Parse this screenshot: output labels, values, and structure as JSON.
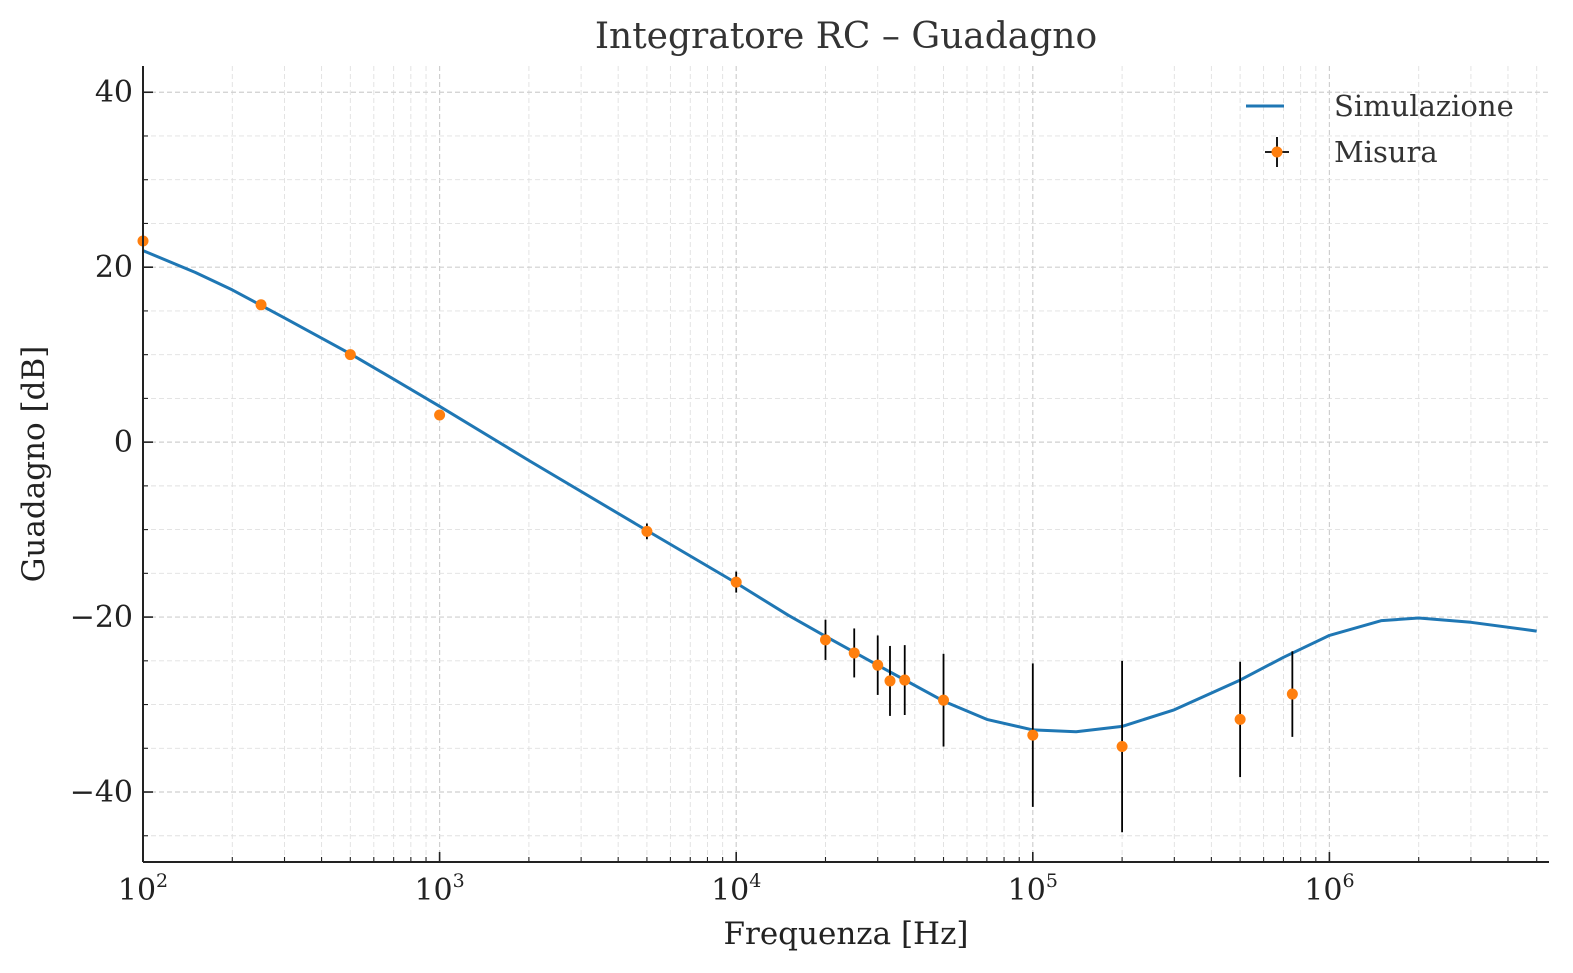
{
  "chart_data": {
    "type": "line",
    "title": "Integratore RC – Guadagno",
    "xlabel": "Frequenza [Hz]",
    "ylabel": "Guadagno [dB]",
    "xscale": "log",
    "xlim": [
      100,
      5500000
    ],
    "ylim": [
      -48,
      43
    ],
    "x_ticks": [
      {
        "value": 100,
        "base": "10",
        "exp": "2"
      },
      {
        "value": 1000,
        "base": "10",
        "exp": "3"
      },
      {
        "value": 10000,
        "base": "10",
        "exp": "4"
      },
      {
        "value": 100000,
        "base": "10",
        "exp": "5"
      },
      {
        "value": 1000000,
        "base": "10",
        "exp": "6"
      }
    ],
    "y_ticks": [
      {
        "value": 40,
        "label": "40"
      },
      {
        "value": 20,
        "label": "20"
      },
      {
        "value": 0,
        "label": "0"
      },
      {
        "value": -20,
        "label": "−20"
      },
      {
        "value": -40,
        "label": "−40"
      }
    ],
    "grid": true,
    "legend_position": "top-right",
    "legend": [
      {
        "name": "Simulazione",
        "kind": "line"
      },
      {
        "name": "Misura",
        "kind": "errorbar"
      }
    ],
    "series": [
      {
        "name": "Simulazione",
        "kind": "line",
        "color": "#1f77b4",
        "x": [
          100,
          150,
          200,
          300,
          500,
          700,
          1000,
          2000,
          5000,
          10000,
          15000,
          20000,
          30000,
          50000,
          70000,
          100000,
          140000,
          200000,
          300000,
          500000,
          700000,
          1000000,
          1500000,
          2000000,
          3000000,
          5000000
        ],
        "y": [
          21.9,
          19.4,
          17.4,
          14.2,
          10.1,
          7.2,
          4.1,
          -2.1,
          -10.1,
          -16.1,
          -19.8,
          -22.2,
          -25.5,
          -29.6,
          -31.7,
          -32.9,
          -33.1,
          -32.5,
          -30.6,
          -27.2,
          -24.6,
          -22.1,
          -20.4,
          -20.1,
          -20.6,
          -21.6
        ]
      },
      {
        "name": "Misura",
        "kind": "errorbar",
        "color": "#ff7f0e",
        "errorbar_color": "#000000",
        "x": [
          100,
          250,
          500,
          1000,
          5000,
          10000,
          20000,
          25000,
          30000,
          33000,
          37000,
          50000,
          100000,
          200000,
          500000,
          750000
        ],
        "y": [
          23.0,
          15.7,
          10.0,
          3.1,
          -10.2,
          -16.0,
          -22.6,
          -24.1,
          -25.5,
          -27.3,
          -27.2,
          -29.5,
          -33.5,
          -34.8,
          -31.7,
          -28.8
        ],
        "yerr": [
          0.3,
          0.4,
          0.5,
          0.5,
          0.9,
          1.2,
          2.3,
          2.8,
          3.4,
          4.0,
          4.0,
          5.3,
          8.2,
          9.8,
          6.6,
          4.9
        ]
      }
    ]
  }
}
